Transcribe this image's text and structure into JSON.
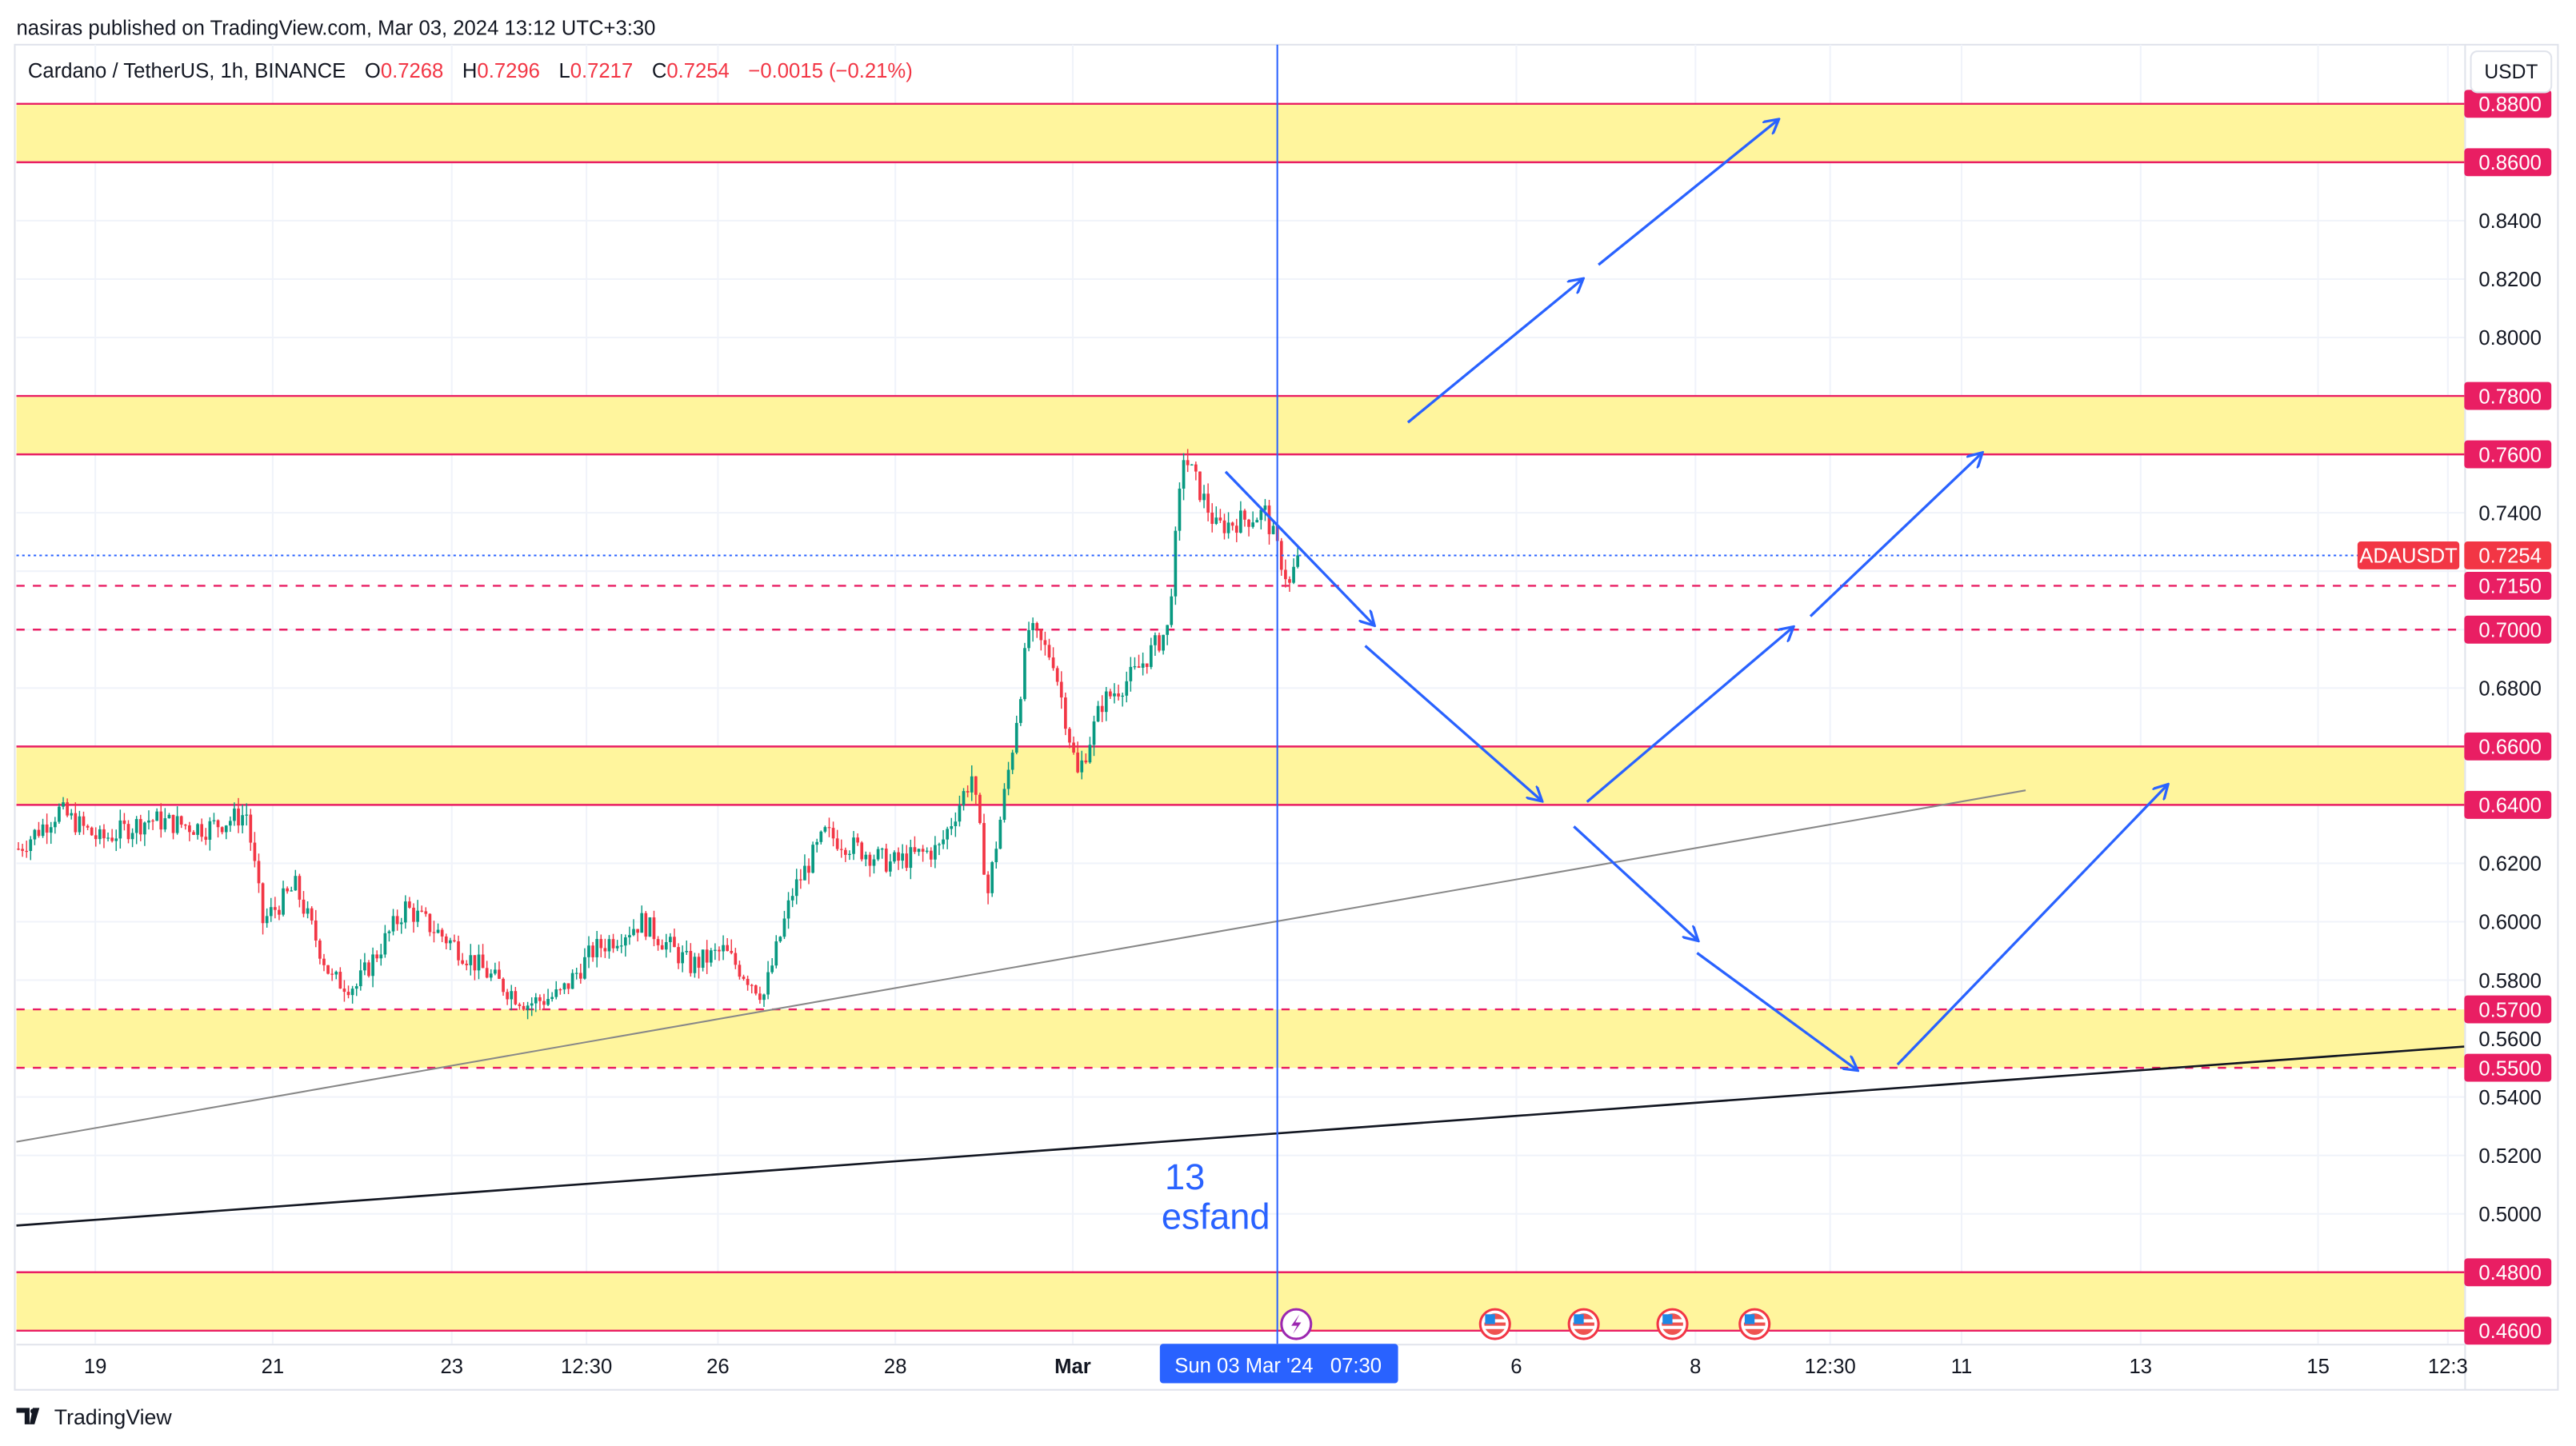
{
  "publish_line": "nasiras published on TradingView.com, Mar 03, 2024 13:12 UTC+3:30",
  "legend": {
    "symbol": "Cardano / TetherUS, 1h, BINANCE",
    "o_label": "O",
    "o": "0.7268",
    "h_label": "H",
    "h": "0.7296",
    "l_label": "L",
    "l": "0.7217",
    "c_label": "C",
    "c": "0.7254",
    "change": "−0.0015 (−0.21%)"
  },
  "currency_button": "USDT",
  "price_axis": {
    "ticks": [
      "0.8400",
      "0.8200",
      "0.8000",
      "0.7400",
      "0.6800",
      "0.6200",
      "0.6000",
      "0.5800",
      "0.5600",
      "0.5400",
      "0.5200",
      "0.5000"
    ],
    "tick_values": [
      0.84,
      0.82,
      0.8,
      0.74,
      0.68,
      0.62,
      0.6,
      0.58,
      0.56,
      0.54,
      0.52,
      0.5
    ],
    "level_labels": [
      "0.8800",
      "0.8600",
      "0.7800",
      "0.7600",
      "0.7150",
      "0.7000",
      "0.6600",
      "0.6400",
      "0.5700",
      "0.5500",
      "0.4800",
      "0.4600"
    ],
    "level_values": [
      0.88,
      0.86,
      0.78,
      0.76,
      0.715,
      0.7,
      0.66,
      0.64,
      0.57,
      0.55,
      0.48,
      0.46
    ],
    "current_symbol": "ADAUSDT",
    "current_price": "0.7254",
    "current_value": 0.7254
  },
  "zones": [
    [
      0.86,
      0.88
    ],
    [
      0.76,
      0.78
    ],
    [
      0.64,
      0.66
    ],
    [
      0.55,
      0.57
    ],
    [
      0.46,
      0.48
    ]
  ],
  "time_axis": [
    "19",
    "21",
    "23",
    "12:30",
    "26",
    "28",
    "Mar",
    "6",
    "8",
    "12:30",
    "11",
    "13",
    "15",
    "12:3"
  ],
  "crosshair_label": "Sun 03 Mar '24   07:30",
  "annotation": {
    "line1": "13",
    "line2": "esfand"
  },
  "colors": {
    "up": "#089981",
    "down": "#f23645",
    "level": "#e91e63",
    "zone": "#fff59d",
    "arrow": "#2962ff"
  },
  "price_path": [
    [
      0,
      0.625
    ],
    [
      10,
      0.638
    ],
    [
      20,
      0.628
    ],
    [
      32,
      0.635
    ],
    [
      46,
      0.632
    ],
    [
      56,
      0.637
    ],
    [
      60,
      0.6
    ],
    [
      68,
      0.612
    ],
    [
      77,
      0.58
    ],
    [
      83,
      0.578
    ],
    [
      95,
      0.605
    ],
    [
      107,
      0.592
    ],
    [
      117,
      0.58
    ],
    [
      125,
      0.572
    ],
    [
      133,
      0.575
    ],
    [
      141,
      0.59
    ],
    [
      153,
      0.6
    ],
    [
      165,
      0.585
    ],
    [
      173,
      0.59
    ],
    [
      183,
      0.575
    ],
    [
      190,
      0.61
    ],
    [
      198,
      0.63
    ],
    [
      214,
      0.62
    ],
    [
      226,
      0.625
    ],
    [
      234,
      0.65
    ],
    [
      238,
      0.61
    ],
    [
      244,
      0.66
    ],
    [
      248,
      0.7
    ],
    [
      254,
      0.69
    ],
    [
      260,
      0.65
    ],
    [
      266,
      0.675
    ],
    [
      274,
      0.685
    ],
    [
      282,
      0.7
    ],
    [
      286,
      0.76
    ],
    [
      294,
      0.735
    ],
    [
      306,
      0.74
    ],
    [
      312,
      0.715
    ],
    [
      314,
      0.7254
    ]
  ],
  "footer_logo": "TradingView"
}
